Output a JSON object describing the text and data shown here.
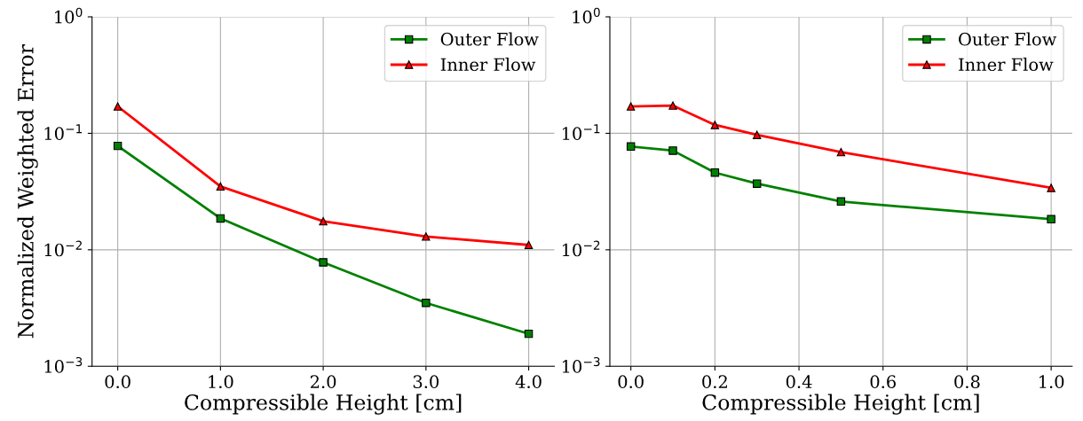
{
  "chart_data": [
    {
      "type": "line",
      "xlabel": "Compressible Height [cm]",
      "ylabel": "Normalized Weighted Error",
      "log": "y",
      "grid": true,
      "legend": "top right",
      "x": [
        0,
        1,
        2,
        3,
        4
      ],
      "series": [
        {
          "name": "Outer Flow",
          "color": "#008000",
          "marker": "square",
          "values": [
            0.078,
            0.0186,
            0.0078,
            0.0035,
            0.0019
          ]
        },
        {
          "name": "Inner Flow",
          "color": "#ff0000",
          "marker": "triangle",
          "values": [
            0.17,
            0.035,
            0.0176,
            0.013,
            0.011
          ]
        }
      ],
      "xlim": [
        -0.25,
        4.25
      ],
      "xticks": [
        {
          "value": 0,
          "label": "0.0"
        },
        {
          "value": 1,
          "label": "1.0"
        },
        {
          "value": 2,
          "label": "2.0"
        },
        {
          "value": 3,
          "label": "3.0"
        },
        {
          "value": 4,
          "label": "4.0"
        }
      ],
      "ylim": [
        0.001,
        1
      ],
      "yticks": [
        {
          "value": 0.001,
          "label": "10$^{−3}$"
        },
        {
          "value": 0.01,
          "label": "10$^{−2}$"
        },
        {
          "value": 0.1,
          "label": "10$^{−1}$"
        },
        {
          "value": 1,
          "label": "10$^{0}$"
        }
      ]
    },
    {
      "type": "line",
      "xlabel": "Compressible Height [cm]",
      "log": "y",
      "grid": true,
      "legend": "top right",
      "x": [
        0,
        0.1,
        0.2,
        0.3,
        0.5,
        1.0
      ],
      "series": [
        {
          "name": "Outer Flow",
          "color": "#008000",
          "marker": "square",
          "values": [
            0.077,
            0.071,
            0.046,
            0.037,
            0.026,
            0.0183
          ]
        },
        {
          "name": "Inner Flow",
          "color": "#ff0000",
          "marker": "triangle",
          "values": [
            0.17,
            0.173,
            0.118,
            0.097,
            0.069,
            0.034
          ]
        }
      ],
      "xlim": [
        -0.05,
        1.05
      ],
      "xticks": [
        {
          "value": 0,
          "label": "0.0"
        },
        {
          "value": 0.2,
          "label": "0.2"
        },
        {
          "value": 0.4,
          "label": "0.4"
        },
        {
          "value": 0.6,
          "label": "0.6"
        },
        {
          "value": 0.8,
          "label": "0.8"
        },
        {
          "value": 1.0,
          "label": "1.0"
        }
      ],
      "ylim": [
        0.001,
        1
      ],
      "yticks": [
        {
          "value": 0.001,
          "label": "10$^{−3}$"
        },
        {
          "value": 0.01,
          "label": "10$^{−2}$"
        },
        {
          "value": 0.1,
          "label": "10$^{−1}$"
        },
        {
          "value": 1,
          "label": "10$^{0}$"
        }
      ]
    }
  ]
}
